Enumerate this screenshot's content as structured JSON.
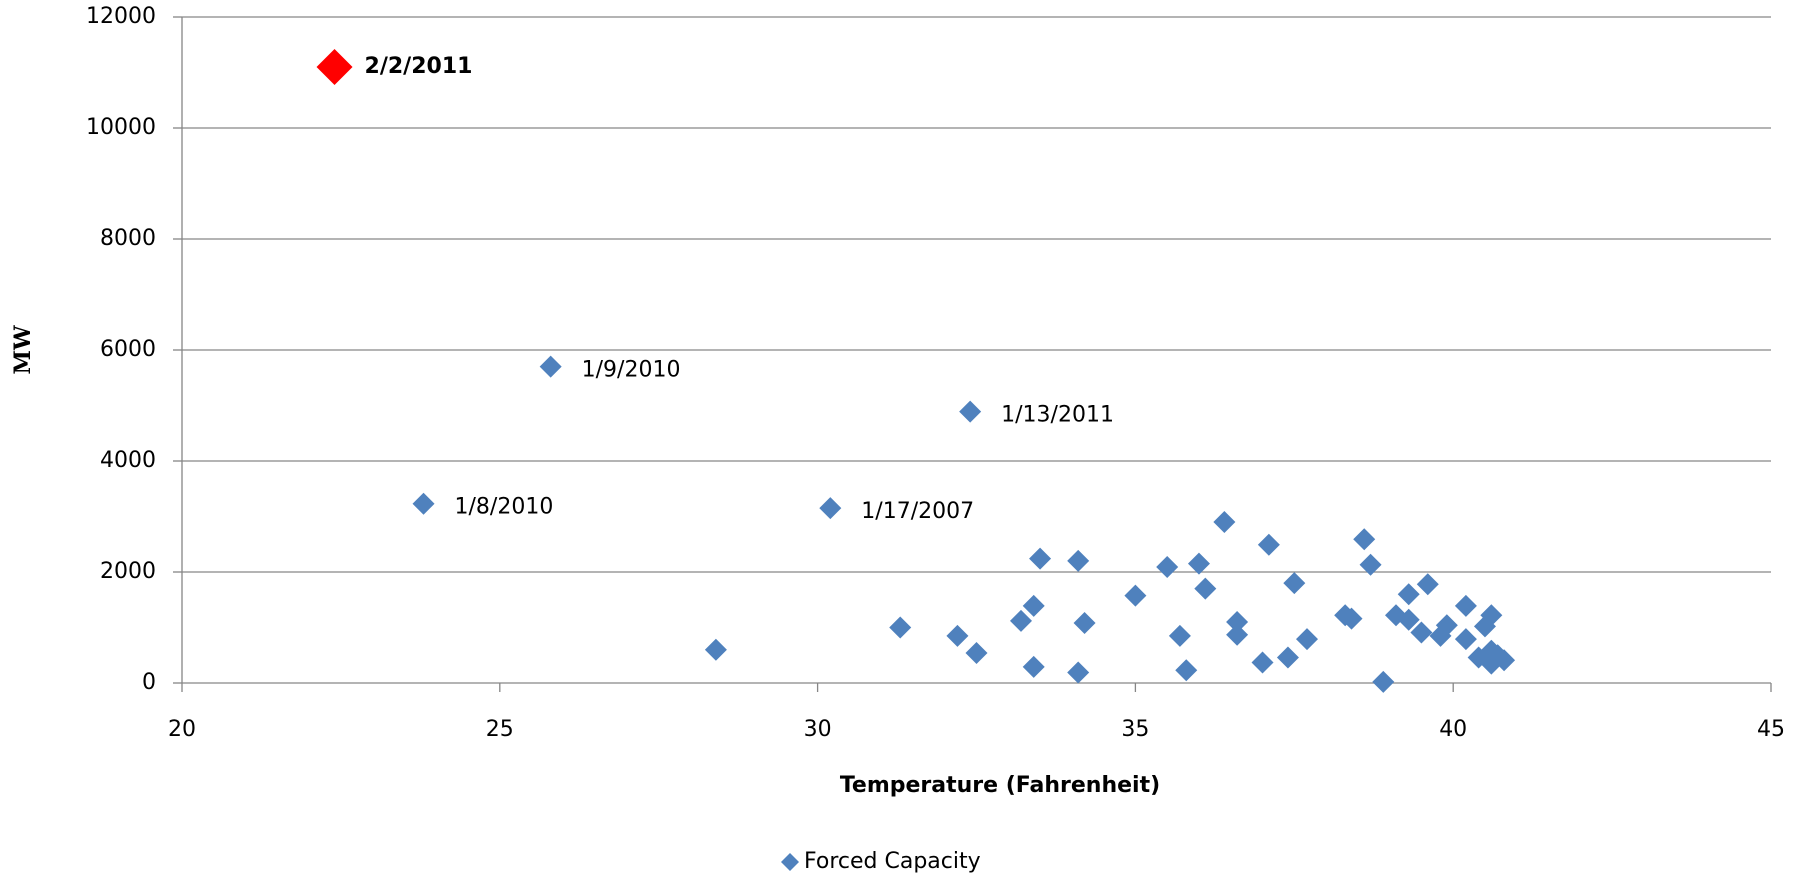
{
  "chart_data": {
    "type": "scatter",
    "x_label": "Temperature (Fahrenheit)",
    "y_label": "MW",
    "xlim": [
      20,
      45
    ],
    "xticks": [
      20,
      25,
      30,
      35,
      40,
      45
    ],
    "ylim": [
      0,
      12000
    ],
    "yticks": [
      0,
      2000,
      4000,
      6000,
      8000,
      10000,
      12000
    ],
    "grid": true,
    "legend": "bottom",
    "series": [
      {
        "name": "Forced Capacity",
        "color": "#4f81bd",
        "x": [
          28.4,
          31.3,
          32.2,
          32.5,
          33.2,
          33.4,
          33.4,
          33.5,
          34.1,
          34.1,
          34.2,
          35.0,
          35.5,
          35.7,
          35.8,
          36.0,
          36.1,
          36.4,
          36.6,
          36.6,
          37.0,
          37.1,
          37.4,
          37.5,
          37.7,
          38.3,
          38.4,
          38.6,
          38.7,
          38.9,
          39.1,
          39.3,
          39.3,
          39.5,
          39.6,
          39.8,
          39.9,
          40.2,
          40.2,
          40.4,
          40.5,
          40.6,
          40.6,
          40.6,
          40.8,
          40.7
        ],
        "values": [
          600,
          1000,
          850,
          540,
          1120,
          1390,
          290,
          2240,
          2200,
          190,
          1080,
          1575,
          2090,
          850,
          230,
          2150,
          1700,
          2900,
          1100,
          870,
          370,
          2490,
          460,
          1800,
          790,
          1220,
          1160,
          2590,
          2130,
          20,
          1220,
          1600,
          1140,
          910,
          1780,
          850,
          1040,
          1390,
          790,
          460,
          1020,
          580,
          350,
          1220,
          410,
          500
        ]
      }
    ],
    "labeled_points": [
      {
        "label": "1/8/2010",
        "x": 23.8,
        "y": 3230
      },
      {
        "label": "1/9/2010",
        "x": 25.8,
        "y": 5700
      },
      {
        "label": "1/17/2007",
        "x": 30.2,
        "y": 3150
      },
      {
        "label": "1/13/2011",
        "x": 32.4,
        "y": 4890
      }
    ],
    "highlight": {
      "label": "2/2/2011",
      "x": 22.4,
      "y": 11100,
      "color": "#ff0000"
    }
  }
}
